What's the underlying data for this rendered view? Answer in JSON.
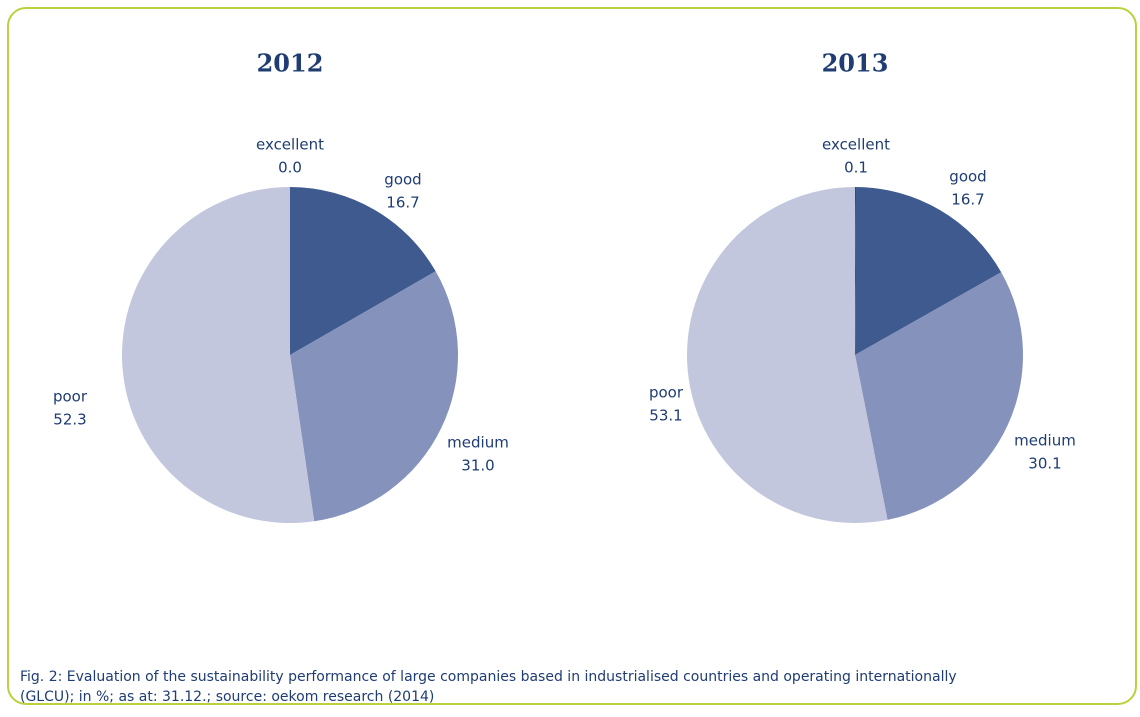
{
  "chart_data": [
    {
      "type": "pie",
      "title": "2012",
      "categories": [
        "excellent",
        "good",
        "medium",
        "poor"
      ],
      "values": [
        0,
        16.7,
        31,
        52.3
      ],
      "value_labels": [
        "0.0",
        "16.7",
        "31.0",
        "52.3"
      ],
      "colors": [
        "#2f4a7e",
        "#3f5a8f",
        "#8592bc",
        "#c3c7de"
      ]
    },
    {
      "type": "pie",
      "title": "2013",
      "categories": [
        "excellent",
        "good",
        "medium",
        "poor"
      ],
      "values": [
        0.1,
        16.7,
        30.1,
        53.1
      ],
      "value_labels": [
        "0.1",
        "16.7",
        "30.1",
        "53.1"
      ],
      "colors": [
        "#2f4a7e",
        "#3f5a8f",
        "#8592bc",
        "#c3c7de"
      ]
    }
  ],
  "caption": [
    "Fig. 2: Evaluation of the sustainability performance of large companies based in industrialised countries and operating internationally",
    "(GLCU); in %; as at: 31.12.; source: oekom research (2014)"
  ]
}
